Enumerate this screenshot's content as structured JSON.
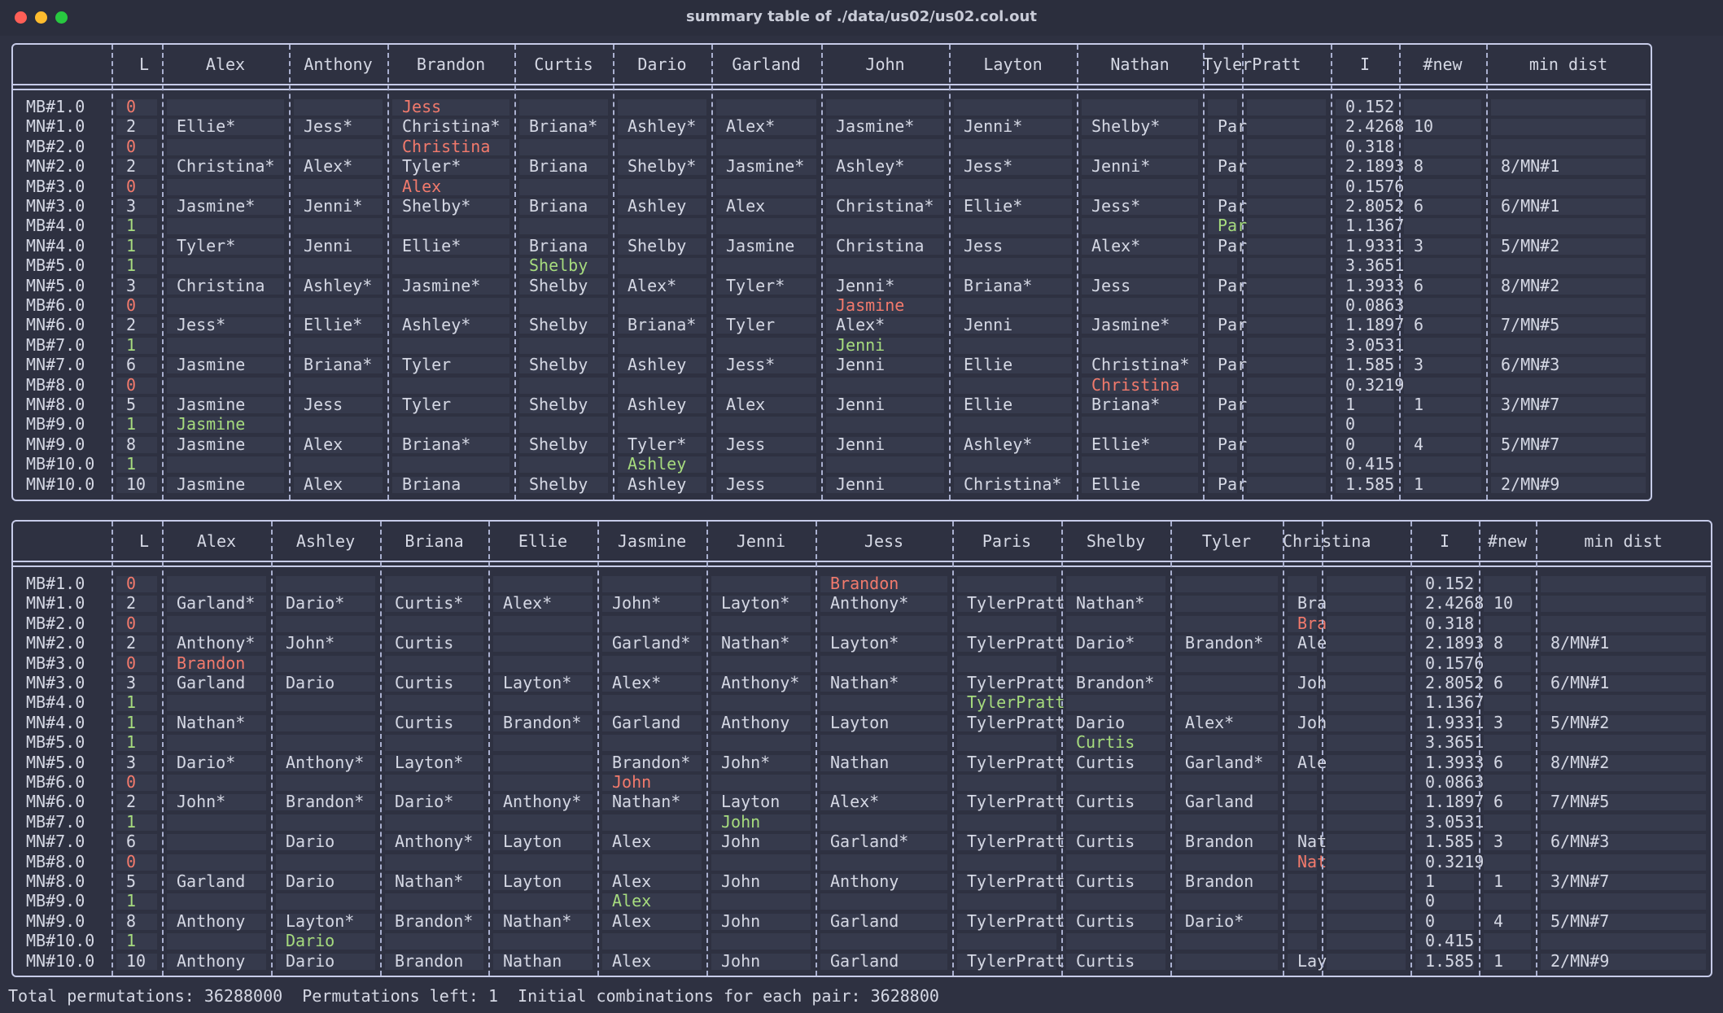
{
  "window": {
    "title": "summary table of ./data/us02/us02.col.out"
  },
  "footer": {
    "text": "Total permutations: 36288000  Permutations left: 1  Initial combinations for each pair: 3628800"
  },
  "colors": {
    "background": "#2e3141",
    "border": "#c6cbe8",
    "text": "#d5d8e4",
    "zero_l": "#f27a6c",
    "one_l": "#a6db7e"
  },
  "tables": [
    {
      "columns": [
        "",
        "L",
        "Alex",
        "Anthony",
        "Brandon",
        "Curtis",
        "Dario",
        "Garland",
        "John",
        "Layton",
        "Nathan",
        "TylerPratt",
        "",
        "I",
        "#new",
        "min dist"
      ],
      "rows": [
        [
          "MB#1.0",
          "0",
          "",
          "",
          "Jess",
          "",
          "",
          "",
          "",
          "",
          "",
          "",
          "",
          "0.152",
          "",
          ""
        ],
        [
          "MN#1.0",
          "2",
          "Ellie*",
          "Jess*",
          "Christina*",
          "Briana*",
          "Ashley*",
          "Alex*",
          "Jasmine*",
          "Jenni*",
          "Shelby*",
          "Paris*",
          "",
          "2.4268",
          "10",
          ""
        ],
        [
          "MB#2.0",
          "0",
          "",
          "",
          "Christina",
          "",
          "",
          "",
          "",
          "",
          "",
          "",
          "",
          "0.318",
          "",
          ""
        ],
        [
          "MN#2.0",
          "2",
          "Christina*",
          "Alex*",
          "Tyler*",
          "Briana",
          "Shelby*",
          "Jasmine*",
          "Ashley*",
          "Jess*",
          "Jenni*",
          "Paris",
          "",
          "2.1893",
          "8",
          "8/MN#1"
        ],
        [
          "MB#3.0",
          "0",
          "",
          "",
          "Alex",
          "",
          "",
          "",
          "",
          "",
          "",
          "",
          "",
          "0.1576",
          "",
          ""
        ],
        [
          "MN#3.0",
          "3",
          "Jasmine*",
          "Jenni*",
          "Shelby*",
          "Briana",
          "Ashley",
          "Alex",
          "Christina*",
          "Ellie*",
          "Jess*",
          "Paris",
          "",
          "2.8052",
          "6",
          "6/MN#1"
        ],
        [
          "MB#4.0",
          "1",
          "",
          "",
          "",
          "",
          "",
          "",
          "",
          "",
          "",
          "Paris",
          "",
          "1.1367",
          "",
          ""
        ],
        [
          "MN#4.0",
          "1",
          "Tyler*",
          "Jenni",
          "Ellie*",
          "Briana",
          "Shelby",
          "Jasmine",
          "Christina",
          "Jess",
          "Alex*",
          "Paris",
          "",
          "1.9331",
          "3",
          "5/MN#2"
        ],
        [
          "MB#5.0",
          "1",
          "",
          "",
          "",
          "Shelby",
          "",
          "",
          "",
          "",
          "",
          "",
          "",
          "3.3651",
          "",
          ""
        ],
        [
          "MN#5.0",
          "3",
          "Christina",
          "Ashley*",
          "Jasmine*",
          "Shelby",
          "Alex*",
          "Tyler*",
          "Jenni*",
          "Briana*",
          "Jess",
          "Paris",
          "",
          "1.3933",
          "6",
          "8/MN#2"
        ],
        [
          "MB#6.0",
          "0",
          "",
          "",
          "",
          "",
          "",
          "",
          "Jasmine",
          "",
          "",
          "",
          "",
          "0.0863",
          "",
          ""
        ],
        [
          "MN#6.0",
          "2",
          "Jess*",
          "Ellie*",
          "Ashley*",
          "Shelby",
          "Briana*",
          "Tyler",
          "Alex*",
          "Jenni",
          "Jasmine*",
          "Paris",
          "",
          "1.1897",
          "6",
          "7/MN#5"
        ],
        [
          "MB#7.0",
          "1",
          "",
          "",
          "",
          "",
          "",
          "",
          "Jenni",
          "",
          "",
          "",
          "",
          "3.0531",
          "",
          ""
        ],
        [
          "MN#7.0",
          "6",
          "Jasmine",
          "Briana*",
          "Tyler",
          "Shelby",
          "Ashley",
          "Jess*",
          "Jenni",
          "Ellie",
          "Christina*",
          "Paris",
          "",
          "1.585",
          "3",
          "6/MN#3"
        ],
        [
          "MB#8.0",
          "0",
          "",
          "",
          "",
          "",
          "",
          "",
          "",
          "",
          "Christina",
          "",
          "",
          "0.3219",
          "",
          ""
        ],
        [
          "MN#8.0",
          "5",
          "Jasmine",
          "Jess",
          "Tyler",
          "Shelby",
          "Ashley",
          "Alex",
          "Jenni",
          "Ellie",
          "Briana*",
          "Paris",
          "",
          "1",
          "1",
          "3/MN#7"
        ],
        [
          "MB#9.0",
          "1",
          "Jasmine",
          "",
          "",
          "",
          "",
          "",
          "",
          "",
          "",
          "",
          "",
          "0",
          "",
          ""
        ],
        [
          "MN#9.0",
          "8",
          "Jasmine",
          "Alex",
          "Briana*",
          "Shelby",
          "Tyler*",
          "Jess",
          "Jenni",
          "Ashley*",
          "Ellie*",
          "Paris",
          "",
          "0",
          "4",
          "5/MN#7"
        ],
        [
          "MB#10.0",
          "1",
          "",
          "",
          "",
          "",
          "Ashley",
          "",
          "",
          "",
          "",
          "",
          "",
          "0.415",
          "",
          ""
        ],
        [
          "MN#10.0",
          "10",
          "Jasmine",
          "Alex",
          "Briana",
          "Shelby",
          "Ashley",
          "Jess",
          "Jenni",
          "Christina*",
          "Ellie",
          "Paris",
          "",
          "1.585",
          "1",
          "2/MN#9"
        ]
      ]
    },
    {
      "columns": [
        "",
        "L",
        "Alex",
        "Ashley",
        "Briana",
        "Ellie",
        "Jasmine",
        "Jenni",
        "Jess",
        "Paris",
        "Shelby",
        "Tyler",
        "Christina",
        "",
        "I",
        "#new",
        "min dist"
      ],
      "rows": [
        [
          "MB#1.0",
          "0",
          "",
          "",
          "",
          "",
          "",
          "",
          "Brandon",
          "",
          "",
          "",
          "",
          "",
          "0.152",
          "",
          ""
        ],
        [
          "MN#1.0",
          "2",
          "Garland*",
          "Dario*",
          "Curtis*",
          "Alex*",
          "John*",
          "Layton*",
          "Anthony*",
          "TylerPratt*",
          "Nathan*",
          "",
          "Brandon*",
          "",
          "2.4268",
          "10",
          ""
        ],
        [
          "MB#2.0",
          "0",
          "",
          "",
          "",
          "",
          "",
          "",
          "",
          "",
          "",
          "",
          "Brandon",
          "",
          "0.318",
          "",
          ""
        ],
        [
          "MN#2.0",
          "2",
          "Anthony*",
          "John*",
          "Curtis",
          "",
          "Garland*",
          "Nathan*",
          "Layton*",
          "TylerPratt",
          "Dario*",
          "Brandon*",
          "Alex*",
          "",
          "2.1893",
          "8",
          "8/MN#1"
        ],
        [
          "MB#3.0",
          "0",
          "Brandon",
          "",
          "",
          "",
          "",
          "",
          "",
          "",
          "",
          "",
          "",
          "",
          "0.1576",
          "",
          ""
        ],
        [
          "MN#3.0",
          "3",
          "Garland",
          "Dario",
          "Curtis",
          "Layton*",
          "Alex*",
          "Anthony*",
          "Nathan*",
          "TylerPratt",
          "Brandon*",
          "",
          "John*",
          "",
          "2.8052",
          "6",
          "6/MN#1"
        ],
        [
          "MB#4.0",
          "1",
          "",
          "",
          "",
          "",
          "",
          "",
          "",
          "TylerPratt",
          "",
          "",
          "",
          "",
          "1.1367",
          "",
          ""
        ],
        [
          "MN#4.0",
          "1",
          "Nathan*",
          "",
          "Curtis",
          "Brandon*",
          "Garland",
          "Anthony",
          "Layton",
          "TylerPratt",
          "Dario",
          "Alex*",
          "John",
          "",
          "1.9331",
          "3",
          "5/MN#2"
        ],
        [
          "MB#5.0",
          "1",
          "",
          "",
          "",
          "",
          "",
          "",
          "",
          "",
          "Curtis",
          "",
          "",
          "",
          "3.3651",
          "",
          ""
        ],
        [
          "MN#5.0",
          "3",
          "Dario*",
          "Anthony*",
          "Layton*",
          "",
          "Brandon*",
          "John*",
          "Nathan",
          "TylerPratt",
          "Curtis",
          "Garland*",
          "Alex",
          "",
          "1.3933",
          "6",
          "8/MN#2"
        ],
        [
          "MB#6.0",
          "0",
          "",
          "",
          "",
          "",
          "John",
          "",
          "",
          "",
          "",
          "",
          "",
          "",
          "0.0863",
          "",
          ""
        ],
        [
          "MN#6.0",
          "2",
          "John*",
          "Brandon*",
          "Dario*",
          "Anthony*",
          "Nathan*",
          "Layton",
          "Alex*",
          "TylerPratt",
          "Curtis",
          "Garland",
          "",
          "",
          "1.1897",
          "6",
          "7/MN#5"
        ],
        [
          "MB#7.0",
          "1",
          "",
          "",
          "",
          "",
          "",
          "John",
          "",
          "",
          "",
          "",
          "",
          "",
          "3.0531",
          "",
          ""
        ],
        [
          "MN#7.0",
          "6",
          "",
          "Dario",
          "Anthony*",
          "Layton",
          "Alex",
          "John",
          "Garland*",
          "TylerPratt",
          "Curtis",
          "Brandon",
          "Nathan*",
          "",
          "1.585",
          "3",
          "6/MN#3"
        ],
        [
          "MB#8.0",
          "0",
          "",
          "",
          "",
          "",
          "",
          "",
          "",
          "",
          "",
          "",
          "Nathan",
          "",
          "0.3219",
          "",
          ""
        ],
        [
          "MN#8.0",
          "5",
          "Garland",
          "Dario",
          "Nathan*",
          "Layton",
          "Alex",
          "John",
          "Anthony",
          "TylerPratt",
          "Curtis",
          "Brandon",
          "",
          "",
          "1",
          "1",
          "3/MN#7"
        ],
        [
          "MB#9.0",
          "1",
          "",
          "",
          "",
          "",
          "Alex",
          "",
          "",
          "",
          "",
          "",
          "",
          "",
          "0",
          "",
          ""
        ],
        [
          "MN#9.0",
          "8",
          "Anthony",
          "Layton*",
          "Brandon*",
          "Nathan*",
          "Alex",
          "John",
          "Garland",
          "TylerPratt",
          "Curtis",
          "Dario*",
          "",
          "",
          "0",
          "4",
          "5/MN#7"
        ],
        [
          "MB#10.0",
          "1",
          "",
          "Dario",
          "",
          "",
          "",
          "",
          "",
          "",
          "",
          "",
          "",
          "",
          "0.415",
          "",
          ""
        ],
        [
          "MN#10.0",
          "10",
          "Anthony",
          "Dario",
          "Brandon",
          "Nathan",
          "Alex",
          "John",
          "Garland",
          "TylerPratt",
          "Curtis",
          "",
          "Layton*",
          "",
          "1.585",
          "1",
          "2/MN#9"
        ]
      ]
    }
  ]
}
